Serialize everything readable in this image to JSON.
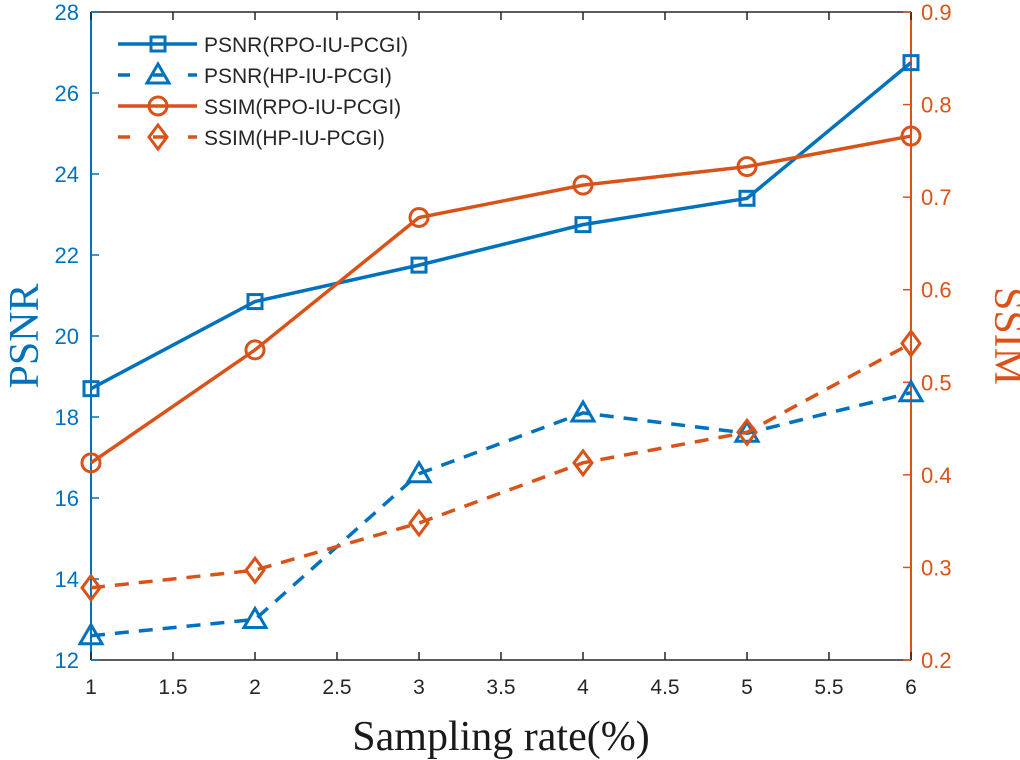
{
  "chart_data": {
    "type": "line",
    "title": "",
    "xlabel": "Sampling rate(%)",
    "ylabel": "PSNR",
    "y2label": "SSIM",
    "x": [
      1,
      2,
      3,
      4,
      5,
      6
    ],
    "xlim": [
      1,
      6
    ],
    "ylim": [
      12,
      28
    ],
    "y2lim": [
      0.2,
      0.9
    ],
    "xticks": [
      "1",
      "1.5",
      "2",
      "2.5",
      "3",
      "3.5",
      "4",
      "4.5",
      "5",
      "5.5",
      "6"
    ],
    "yticks": [
      "12",
      "14",
      "16",
      "18",
      "20",
      "22",
      "24",
      "26",
      "28"
    ],
    "y2ticks": [
      "0.2",
      "0.3",
      "0.4",
      "0.5",
      "0.6",
      "0.7",
      "0.8",
      "0.9"
    ],
    "grid": false,
    "legend_position": "top-left",
    "colors": {
      "left": "#0072BD",
      "right": "#D95319"
    },
    "series": [
      {
        "name": "PSNR(RPO-IU-PCGI)",
        "axis": "left",
        "style": "solid",
        "marker": "square",
        "values": [
          18.7,
          20.85,
          21.75,
          22.75,
          23.4,
          26.75
        ]
      },
      {
        "name": "PSNR(HP-IU-PCGI)",
        "axis": "left",
        "style": "dashed",
        "marker": "triangle",
        "values": [
          12.6,
          13.0,
          16.6,
          18.1,
          17.6,
          18.6
        ]
      },
      {
        "name": "SSIM(RPO-IU-PCGI)",
        "axis": "right",
        "style": "solid",
        "marker": "circle",
        "values": [
          0.413,
          0.535,
          0.678,
          0.713,
          0.733,
          0.766
        ]
      },
      {
        "name": "SSIM(HP-IU-PCGI)",
        "axis": "right",
        "style": "dashed",
        "marker": "diamond",
        "values": [
          0.278,
          0.297,
          0.348,
          0.413,
          0.446,
          0.542
        ]
      }
    ]
  }
}
